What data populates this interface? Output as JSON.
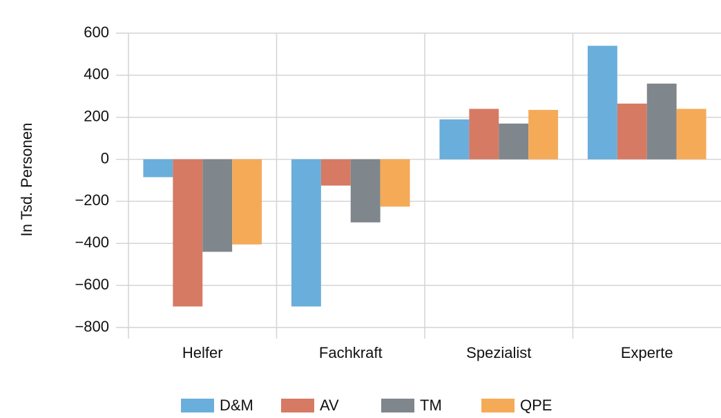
{
  "chart_data": {
    "type": "bar",
    "y_label": "In Tsd. Personen",
    "categories": [
      "Helfer",
      "Fachkraft",
      "Spezialist",
      "Experte"
    ],
    "series": [
      {
        "name": "D&M",
        "color": "#6aaedb",
        "values": [
          -85,
          -700,
          190,
          540
        ]
      },
      {
        "name": "AV",
        "color": "#d67a64",
        "values": [
          -700,
          -125,
          240,
          265
        ]
      },
      {
        "name": "TM",
        "color": "#7f868c",
        "values": [
          -440,
          -300,
          170,
          360
        ]
      },
      {
        "name": "QPE",
        "color": "#f5aa58",
        "values": [
          -405,
          -225,
          235,
          240
        ]
      }
    ],
    "ylim": [
      -800,
      600
    ],
    "yticks": [
      600,
      400,
      200,
      0,
      {
        "value": -200,
        "label": "−200"
      },
      {
        "value": -400,
        "label": "−400"
      },
      {
        "value": -600,
        "label": "−600"
      },
      {
        "value": -800,
        "label": "−800"
      }
    ],
    "grid": true
  }
}
